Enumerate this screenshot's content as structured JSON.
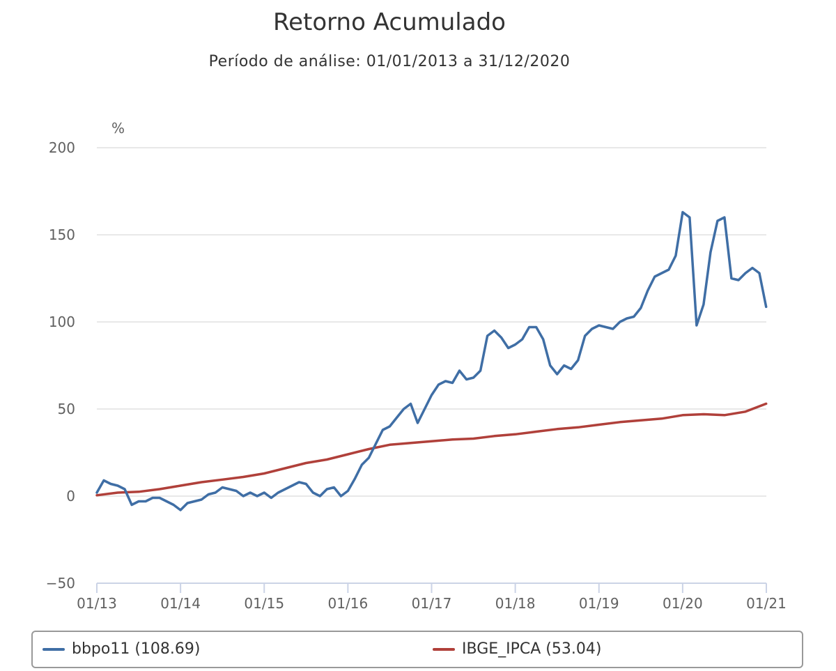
{
  "colors": {
    "series1": "#3f6ea5",
    "series2": "#b0403a",
    "grid": "#e0e0e0",
    "axis": "#cbd3e6"
  },
  "legend": {
    "items": [
      {
        "label": "bbpo11 (108.69)",
        "color": "#3f6ea5"
      },
      {
        "label": "IBGE_IPCA (53.04)",
        "color": "#b0403a"
      }
    ]
  },
  "chart_data": {
    "type": "line",
    "title": "Retorno Acumulado",
    "subtitle": "Período de análise: 01/01/2013 a 31/12/2020",
    "ylabel": "%",
    "ylim": [
      -50,
      200
    ],
    "yticks": [
      -50,
      0,
      50,
      100,
      150,
      200
    ],
    "xlim": [
      "2013-01",
      "2021-01"
    ],
    "xticks": [
      "01/13",
      "01/14",
      "01/15",
      "01/16",
      "01/17",
      "01/18",
      "01/19",
      "01/20",
      "01/21"
    ],
    "grid": true,
    "legend_position": "bottom",
    "series": [
      {
        "name": "bbpo11",
        "color": "#3f6ea5",
        "x": [
          "2013-01",
          "2013-02",
          "2013-03",
          "2013-04",
          "2013-05",
          "2013-06",
          "2013-07",
          "2013-08",
          "2013-09",
          "2013-10",
          "2013-11",
          "2013-12",
          "2014-01",
          "2014-02",
          "2014-03",
          "2014-04",
          "2014-05",
          "2014-06",
          "2014-07",
          "2014-08",
          "2014-09",
          "2014-10",
          "2014-11",
          "2014-12",
          "2015-01",
          "2015-02",
          "2015-03",
          "2015-04",
          "2015-05",
          "2015-06",
          "2015-07",
          "2015-08",
          "2015-09",
          "2015-10",
          "2015-11",
          "2015-12",
          "2016-01",
          "2016-02",
          "2016-03",
          "2016-04",
          "2016-05",
          "2016-06",
          "2016-07",
          "2016-08",
          "2016-09",
          "2016-10",
          "2016-11",
          "2016-12",
          "2017-01",
          "2017-02",
          "2017-03",
          "2017-04",
          "2017-05",
          "2017-06",
          "2017-07",
          "2017-08",
          "2017-09",
          "2017-10",
          "2017-11",
          "2017-12",
          "2018-01",
          "2018-02",
          "2018-03",
          "2018-04",
          "2018-05",
          "2018-06",
          "2018-07",
          "2018-08",
          "2018-09",
          "2018-10",
          "2018-11",
          "2018-12",
          "2019-01",
          "2019-02",
          "2019-03",
          "2019-04",
          "2019-05",
          "2019-06",
          "2019-07",
          "2019-08",
          "2019-09",
          "2019-10",
          "2019-11",
          "2019-12",
          "2020-01",
          "2020-02",
          "2020-03",
          "2020-04",
          "2020-05",
          "2020-06",
          "2020-07",
          "2020-08",
          "2020-09",
          "2020-10",
          "2020-11",
          "2020-12",
          "2020-12-31"
        ],
        "values": [
          2,
          9,
          7,
          6,
          4,
          -5,
          -3,
          -3,
          -1,
          -1,
          -3,
          -5,
          -8,
          -4,
          -3,
          -2,
          1,
          2,
          5,
          4,
          3,
          0,
          2,
          0,
          2,
          -1,
          2,
          4,
          6,
          8,
          7,
          2,
          0,
          4,
          5,
          0,
          3,
          10,
          18,
          22,
          30,
          38,
          40,
          45,
          50,
          53,
          42,
          50,
          58,
          64,
          66,
          65,
          72,
          67,
          68,
          72,
          92,
          95,
          91,
          85,
          87,
          90,
          97,
          97,
          90,
          75,
          70,
          75,
          73,
          78,
          92,
          96,
          98,
          97,
          96,
          100,
          102,
          103,
          108,
          118,
          126,
          128,
          130,
          138,
          163,
          160,
          98,
          110,
          140,
          158,
          160,
          125,
          124,
          128,
          131,
          128,
          108.69
        ]
      },
      {
        "name": "IBGE_IPCA",
        "color": "#b0403a",
        "x": [
          "2013-01",
          "2013-04",
          "2013-07",
          "2013-10",
          "2014-01",
          "2014-04",
          "2014-07",
          "2014-10",
          "2015-01",
          "2015-04",
          "2015-07",
          "2015-10",
          "2016-01",
          "2016-04",
          "2016-07",
          "2016-10",
          "2017-01",
          "2017-04",
          "2017-07",
          "2017-10",
          "2018-01",
          "2018-04",
          "2018-07",
          "2018-10",
          "2019-01",
          "2019-04",
          "2019-07",
          "2019-10",
          "2020-01",
          "2020-04",
          "2020-07",
          "2020-10",
          "2020-12-31"
        ],
        "values": [
          0.5,
          2,
          2.5,
          4,
          6,
          8,
          9.5,
          11,
          13,
          16,
          19,
          21,
          24,
          27,
          29.5,
          30.5,
          31.5,
          32.5,
          33,
          34.5,
          35.5,
          37,
          38.5,
          39.5,
          41,
          42.5,
          43.5,
          44.5,
          46.5,
          47,
          46.5,
          48.5,
          53.04
        ]
      }
    ]
  }
}
